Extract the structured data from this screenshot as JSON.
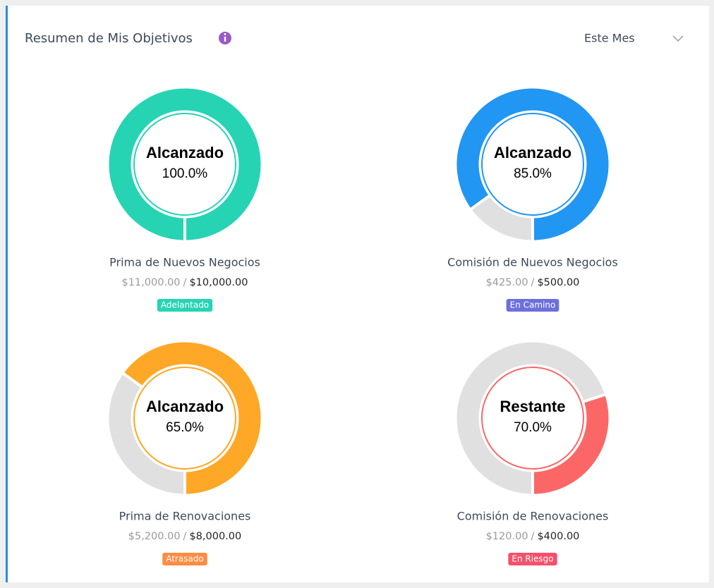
{
  "header": {
    "title": "Resumen de Mis Objetivos",
    "period": "Este Mes"
  },
  "amount_separator": "/",
  "cards": [
    {
      "status_word": "Alcanzado",
      "percent": 100,
      "percent_label": "100.0%",
      "shows": "achieved",
      "color": "#26d4b4",
      "label": "Prima de Nuevos Negocios",
      "actual": "$11,000.00",
      "target": "$10,000.00",
      "badge": "Adelantado",
      "badge_color": "#26d4b4"
    },
    {
      "status_word": "Alcanzado",
      "percent": 85,
      "percent_label": "85.0%",
      "shows": "achieved",
      "color": "#2196f3",
      "label": "Comisión de Nuevos Negocios",
      "actual": "$425.00",
      "target": "$500.00",
      "badge": "En Camino",
      "badge_color": "#6c6fdc"
    },
    {
      "status_word": "Alcanzado",
      "percent": 65,
      "percent_label": "65.0%",
      "shows": "achieved",
      "color": "#ffa726",
      "label": "Prima de Renovaciones",
      "actual": "$5,200.00",
      "target": "$8,000.00",
      "badge": "Atrasado",
      "badge_color": "#ff8c42"
    },
    {
      "status_word": "Restante",
      "percent": 70,
      "percent_label": "70.0%",
      "shows": "remaining",
      "color": "#fb6767",
      "label": "Comisión de Renovaciones",
      "actual": "$120.00",
      "target": "$400.00",
      "badge": "En Riesgo",
      "badge_color": "#f5506a"
    }
  ]
}
